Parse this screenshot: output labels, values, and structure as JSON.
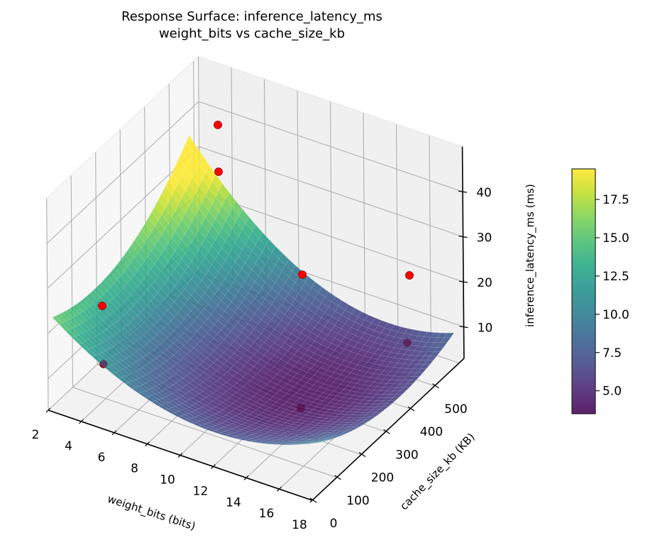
{
  "chart_data": {
    "type": "surface3d",
    "title": "Response Surface: inference_latency_ms",
    "subtitle": "weight_bits vs cache_size_kb",
    "xlabel": "weight_bits (bits)",
    "ylabel": "cache_size_kb (KB)",
    "zlabel": "inference_latency_ms (ms)",
    "x_ticks": [
      2,
      4,
      6,
      8,
      10,
      12,
      14,
      16,
      18
    ],
    "y_ticks": [
      0,
      100,
      200,
      300,
      400,
      500
    ],
    "z_ticks": [
      10,
      20,
      30,
      40
    ],
    "xlim": [
      2,
      18
    ],
    "ylim": [
      0,
      620
    ],
    "zlim": [
      3,
      50
    ],
    "colormap": "viridis",
    "surface_alpha": 0.85,
    "colorbar": {
      "ticks": [
        5.0,
        7.5,
        10.0,
        12.5,
        15.0,
        17.5
      ],
      "tick_labels": [
        "5.0",
        "7.5",
        "10.0",
        "12.5",
        "15.0",
        "17.5"
      ],
      "range": [
        3.5,
        19.5
      ]
    },
    "surface_model": {
      "description": "quadratic bowl fit, min near center-right",
      "min_value": 3.5,
      "max_value": 19.5
    },
    "scatter_points": [
      {
        "x": 4,
        "y": 590,
        "z": 46,
        "color": "#ff0000"
      },
      {
        "x": 4,
        "y": 590,
        "z": 39,
        "color": "#ff0000"
      },
      {
        "x": 4,
        "y": 60,
        "z": 22,
        "color": "#ff0000"
      },
      {
        "x": 12,
        "y": 590,
        "z": 23,
        "color": "#ff0000"
      },
      {
        "x": 18,
        "y": 560,
        "z": 28,
        "color": "#ff0000"
      },
      {
        "x": 4,
        "y": 60,
        "z": 10,
        "color": "#ff0000",
        "occluded": true
      },
      {
        "x": 13,
        "y": 80,
        "z": 4,
        "color": "#ff0000",
        "occluded": true
      },
      {
        "x": 17,
        "y": 480,
        "z": 8,
        "color": "#ff0000",
        "occluded": true
      }
    ],
    "grid": true
  },
  "labels": {
    "title_line1": "Response Surface: inference_latency_ms",
    "title_line2": "weight_bits vs cache_size_kb"
  }
}
